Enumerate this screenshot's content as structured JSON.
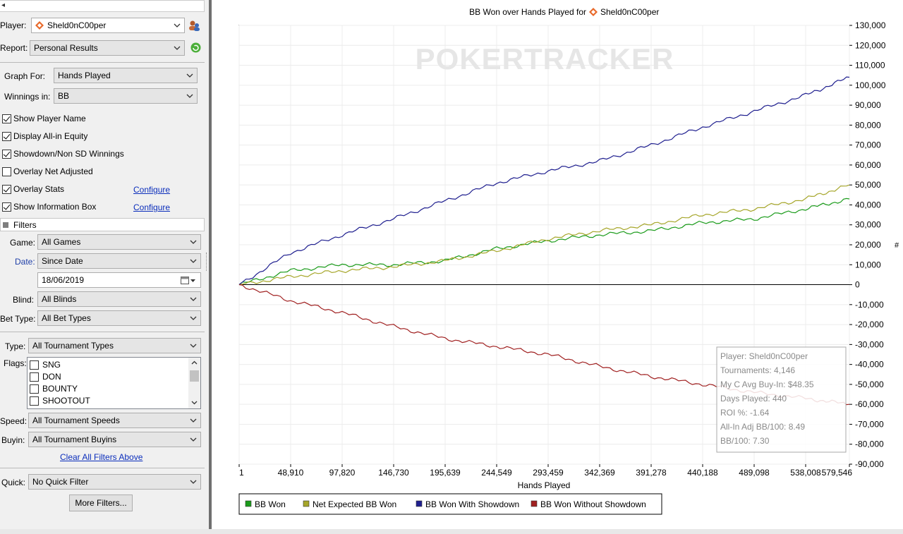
{
  "player": {
    "label": "Player:",
    "value": "Sheld0nC00per"
  },
  "report": {
    "label": "Report:",
    "value": "Personal Results"
  },
  "graph_for": {
    "label": "Graph For:",
    "value": "Hands Played"
  },
  "winnings_in": {
    "label": "Winnings in:",
    "value": "BB"
  },
  "options": [
    {
      "label": "Show Player Name",
      "checked": true
    },
    {
      "label": "Display All-in Equity",
      "checked": true
    },
    {
      "label": "Showdown/Non SD Winnings",
      "checked": true
    },
    {
      "label": "Overlay Net Adjusted",
      "checked": false
    },
    {
      "label": "Overlay Stats",
      "checked": true
    },
    {
      "label": "Show Information Box",
      "checked": true
    }
  ],
  "configure_label": "Configure",
  "filters": {
    "title": "Filters",
    "game": {
      "label": "Game:",
      "value": "All Games"
    },
    "date": {
      "label": "Date:",
      "value": "Since Date",
      "date_value": "18/06/2019"
    },
    "blind": {
      "label": "Blind:",
      "value": "All Blinds"
    },
    "bet_type": {
      "label": "Bet Type:",
      "value": "All Bet Types"
    },
    "type": {
      "label": "Type:",
      "value": "All Tournament Types"
    },
    "flags": {
      "label": "Flags:",
      "items": [
        "SNG",
        "DON",
        "BOUNTY",
        "SHOOTOUT"
      ]
    },
    "speed": {
      "label": "Speed:",
      "value": "All Tournament Speeds"
    },
    "buyin": {
      "label": "Buyin:",
      "value": "All Tournament Buyins"
    },
    "clear_all": "Clear All Filters Above",
    "quick": {
      "label": "Quick:",
      "value": "No Quick Filter"
    },
    "more_filters": "More Filters..."
  },
  "colors": {
    "green": "#1a9b1a",
    "olive": "#a6a62a",
    "navy": "#1f1f8f",
    "darkred": "#a02020",
    "accent": "#e8692a"
  },
  "chart_data": {
    "type": "line",
    "title": "BB Won over Hands Played for",
    "title_player": "Sheld0nC00per",
    "watermark": "POKERTRACKER",
    "xlabel": "Hands Played",
    "ylabel": "",
    "xlim": [
      1,
      579546
    ],
    "ylim": [
      -90000,
      130000
    ],
    "x_ticks": [
      "1",
      "48,910",
      "97,820",
      "146,730",
      "195,639",
      "244,549",
      "293,459",
      "342,369",
      "391,278",
      "440,188",
      "489,098",
      "538,008",
      "579,546"
    ],
    "y_ticks": [
      "130,000",
      "120,000",
      "110,000",
      "100,000",
      "90,000",
      "80,000",
      "70,000",
      "60,000",
      "50,000",
      "40,000",
      "30,000",
      "20,000",
      "10,000",
      "0",
      "-10,000",
      "-20,000",
      "-30,000",
      "-40,000",
      "-50,000",
      "-60,000",
      "-70,000",
      "-80,000",
      "-90,000"
    ],
    "y_tick_values": [
      130000,
      120000,
      110000,
      100000,
      90000,
      80000,
      70000,
      60000,
      50000,
      40000,
      30000,
      20000,
      10000,
      0,
      -10000,
      -20000,
      -30000,
      -40000,
      -50000,
      -60000,
      -70000,
      -80000,
      -90000
    ],
    "x_tick_values": [
      1,
      48910,
      97820,
      146730,
      195639,
      244549,
      293459,
      342369,
      391278,
      440188,
      489098,
      538008,
      579546
    ],
    "right_axis_symbol": "#",
    "grid": true,
    "legend_position": "bottom-left",
    "x": [
      1,
      48910,
      97820,
      146730,
      195639,
      244549,
      293459,
      342369,
      391278,
      440188,
      489098,
      538008,
      579546
    ],
    "series": [
      {
        "name": "BB Won",
        "color": "#1a9b1a",
        "values": [
          0,
          7000,
          10000,
          10000,
          12000,
          18000,
          22000,
          25000,
          27000,
          31000,
          33000,
          38000,
          43000
        ]
      },
      {
        "name": "Net Expected BB Won",
        "color": "#a6a62a",
        "values": [
          0,
          4000,
          7000,
          9000,
          12000,
          17000,
          23000,
          27000,
          30000,
          35000,
          38000,
          43000,
          50000
        ]
      },
      {
        "name": "BB Won With Showdown",
        "color": "#1f1f8f",
        "values": [
          0,
          16000,
          25000,
          33000,
          42000,
          51000,
          57000,
          62000,
          70000,
          79000,
          87000,
          95000,
          104000
        ]
      },
      {
        "name": "BB Won Without Showdown",
        "color": "#a02020",
        "values": [
          0,
          -8000,
          -14000,
          -21000,
          -27000,
          -31000,
          -35000,
          -41000,
          -46000,
          -50000,
          -54000,
          -57000,
          -60000
        ]
      }
    ],
    "info_box": [
      "Player: Sheld0nC00per",
      "Tournaments: 4,146",
      "My C Avg Buy-In: $48.35",
      "Days Played: 440",
      "ROI %: -1.64",
      "All-In Adj BB/100: 8.49",
      "BB/100: 7.30"
    ]
  }
}
